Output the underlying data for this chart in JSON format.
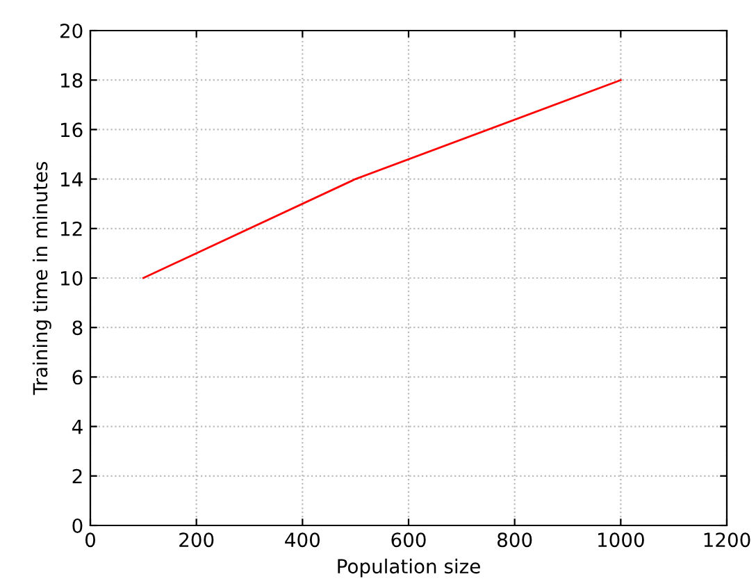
{
  "chart_data": {
    "type": "line",
    "xlabel": "Population size",
    "ylabel": "Training time in minutes",
    "x": [
      100,
      500,
      1000
    ],
    "series": [
      {
        "color": "#ff0000",
        "values": [
          10,
          14,
          18
        ]
      }
    ],
    "xlim": [
      0,
      1200
    ],
    "xticks": [
      0,
      200,
      400,
      600,
      800,
      1000,
      1200
    ],
    "ylim": [
      0,
      20
    ],
    "yticks": [
      0,
      2,
      4,
      6,
      8,
      10,
      12,
      14,
      16,
      18,
      20
    ],
    "grid": true,
    "line_style": "solid",
    "marker": "none",
    "legend": false
  }
}
